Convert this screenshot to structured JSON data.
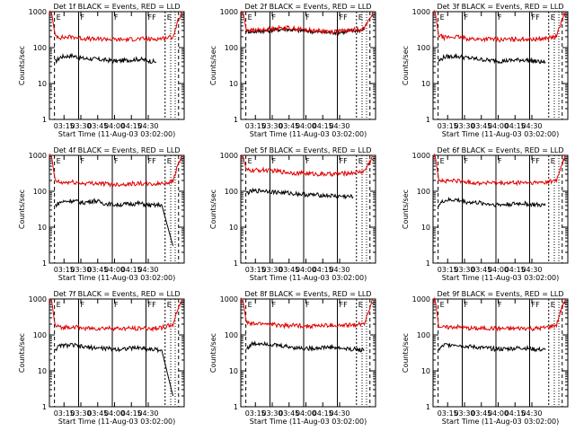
{
  "figure": {
    "ylabel": "Counts/sec",
    "xlabel": "Start Time (11-Aug-03 03:02:00)",
    "x_tick_labels": [
      "03:15",
      "03:30",
      "03:45",
      "04:00",
      "04:15",
      "04:30"
    ],
    "y_tick_labels": [
      "1",
      "10",
      "100",
      "1000"
    ],
    "markers": [
      {
        "label": "E",
        "t": 4.5
      },
      {
        "label": "F",
        "t": 26
      },
      {
        "label": "F",
        "t": 56
      },
      {
        "label": "FF",
        "t": 86
      },
      {
        "label": "E",
        "t": 103
      },
      {
        "label": "S",
        "t": 115
      }
    ],
    "colors": {
      "events": "#000000",
      "lld": "#e00000",
      "axes": "#000000"
    }
  },
  "chart_data": [
    {
      "type": "line",
      "title": "Det 1f BLACK = Events, RED = LLD",
      "xlabel": "Start Time (11-Aug-03 03:02:00)",
      "ylabel": "Counts/sec",
      "xlim": [
        0,
        120
      ],
      "ylim": [
        1,
        1000
      ],
      "yscale": "log",
      "series": [
        {
          "name": "Events",
          "color": "#000000",
          "x": [
            5,
            10,
            20,
            30,
            40,
            50,
            60,
            70,
            80,
            90,
            95
          ],
          "values": [
            40,
            55,
            60,
            50,
            48,
            45,
            42,
            45,
            48,
            42,
            40
          ]
        },
        {
          "name": "LLD",
          "color": "#e00000",
          "x": [
            0,
            2,
            5,
            10,
            20,
            30,
            40,
            50,
            60,
            70,
            80,
            90,
            100,
            110,
            114,
            118
          ],
          "values": [
            1000,
            900,
            220,
            190,
            200,
            180,
            170,
            175,
            165,
            170,
            175,
            170,
            180,
            200,
            500,
            1000
          ]
        }
      ]
    },
    {
      "type": "line",
      "title": "Det 2f BLACK = Events, RED = LLD",
      "xlabel": "Start Time (11-Aug-03 03:02:00)",
      "ylabel": "Counts/sec",
      "xlim": [
        0,
        120
      ],
      "ylim": [
        1,
        1000
      ],
      "yscale": "log",
      "series": [
        {
          "name": "Events",
          "color": "#000000",
          "x": [
            5,
            10,
            20,
            30,
            40,
            50,
            60,
            70,
            80,
            90,
            100,
            110
          ],
          "values": [
            290,
            280,
            290,
            310,
            330,
            300,
            290,
            270,
            260,
            270,
            290,
            320
          ]
        },
        {
          "name": "LLD",
          "color": "#e00000",
          "x": [
            0,
            2,
            5,
            10,
            20,
            30,
            40,
            50,
            60,
            70,
            80,
            90,
            100,
            110,
            114,
            118
          ],
          "values": [
            1000,
            900,
            320,
            300,
            310,
            340,
            360,
            330,
            310,
            290,
            280,
            290,
            310,
            340,
            600,
            1000
          ]
        }
      ]
    },
    {
      "type": "line",
      "title": "Det 3f BLACK = Events, RED = LLD",
      "xlabel": "Start Time (11-Aug-03 03:02:00)",
      "ylabel": "Counts/sec",
      "xlim": [
        0,
        120
      ],
      "ylim": [
        1,
        1000
      ],
      "yscale": "log",
      "series": [
        {
          "name": "Events",
          "color": "#000000",
          "x": [
            5,
            10,
            20,
            30,
            40,
            50,
            60,
            70,
            80,
            90,
            95,
            100
          ],
          "values": [
            42,
            55,
            58,
            52,
            48,
            44,
            42,
            44,
            46,
            42,
            40,
            40
          ]
        },
        {
          "name": "LLD",
          "color": "#e00000",
          "x": [
            0,
            2,
            5,
            10,
            20,
            30,
            40,
            50,
            60,
            70,
            80,
            90,
            100,
            110,
            114,
            118
          ],
          "values": [
            1000,
            900,
            220,
            190,
            200,
            180,
            170,
            175,
            165,
            170,
            175,
            170,
            180,
            200,
            500,
            1000
          ]
        }
      ]
    },
    {
      "type": "line",
      "title": "Det 4f BLACK = Events, RED = LLD",
      "xlabel": "Start Time (11-Aug-03 03:02:00)",
      "ylabel": "Counts/sec",
      "xlim": [
        0,
        120
      ],
      "ylim": [
        1,
        1000
      ],
      "yscale": "log",
      "series": [
        {
          "name": "Events",
          "color": "#000000",
          "x": [
            5,
            10,
            20,
            30,
            40,
            50,
            60,
            70,
            80,
            90,
            100,
            110
          ],
          "values": [
            40,
            50,
            55,
            48,
            55,
            45,
            42,
            44,
            46,
            40,
            42,
            3
          ]
        },
        {
          "name": "LLD",
          "color": "#e00000",
          "x": [
            0,
            2,
            5,
            10,
            20,
            30,
            40,
            50,
            60,
            70,
            80,
            90,
            100,
            110,
            114,
            118
          ],
          "values": [
            1000,
            900,
            200,
            170,
            180,
            165,
            170,
            160,
            155,
            160,
            165,
            155,
            165,
            190,
            500,
            1000
          ]
        }
      ]
    },
    {
      "type": "line",
      "title": "Det 5f BLACK = Events, RED = LLD",
      "xlabel": "Start Time (11-Aug-03 03:02:00)",
      "ylabel": "Counts/sec",
      "xlim": [
        0,
        120
      ],
      "ylim": [
        1,
        1000
      ],
      "yscale": "log",
      "series": [
        {
          "name": "Events",
          "color": "#000000",
          "x": [
            5,
            10,
            20,
            30,
            40,
            50,
            60,
            70,
            80,
            90,
            100
          ],
          "values": [
            90,
            100,
            105,
            95,
            90,
            85,
            80,
            78,
            75,
            72,
            70
          ]
        },
        {
          "name": "LLD",
          "color": "#e00000",
          "x": [
            0,
            2,
            5,
            10,
            20,
            30,
            40,
            50,
            60,
            70,
            80,
            90,
            100,
            110,
            114,
            118
          ],
          "values": [
            1000,
            900,
            380,
            380,
            390,
            370,
            340,
            320,
            310,
            300,
            300,
            310,
            330,
            360,
            600,
            1000
          ]
        }
      ]
    },
    {
      "type": "line",
      "title": "Det 6f BLACK = Events, RED = LLD",
      "xlabel": "Start Time (11-Aug-03 03:02:00)",
      "ylabel": "Counts/sec",
      "xlim": [
        0,
        120
      ],
      "ylim": [
        1,
        1000
      ],
      "yscale": "log",
      "series": [
        {
          "name": "Events",
          "color": "#000000",
          "x": [
            5,
            10,
            20,
            30,
            40,
            50,
            60,
            70,
            80,
            90,
            100
          ],
          "values": [
            42,
            55,
            58,
            50,
            48,
            44,
            42,
            44,
            46,
            42,
            40
          ]
        },
        {
          "name": "LLD",
          "color": "#e00000",
          "x": [
            0,
            2,
            5,
            10,
            20,
            30,
            40,
            50,
            60,
            70,
            80,
            90,
            100,
            110,
            114,
            118
          ],
          "values": [
            1000,
            900,
            220,
            190,
            200,
            180,
            170,
            175,
            165,
            170,
            175,
            170,
            180,
            200,
            500,
            1000
          ]
        }
      ]
    },
    {
      "type": "line",
      "title": "Det 7f BLACK = Events, RED = LLD",
      "xlabel": "Start Time (11-Aug-03 03:02:00)",
      "ylabel": "Counts/sec",
      "xlim": [
        0,
        120
      ],
      "ylim": [
        1,
        1000
      ],
      "yscale": "log",
      "series": [
        {
          "name": "Events",
          "color": "#000000",
          "x": [
            5,
            10,
            20,
            30,
            40,
            50,
            60,
            70,
            80,
            90,
            100,
            110
          ],
          "values": [
            40,
            50,
            52,
            46,
            44,
            42,
            40,
            42,
            44,
            40,
            38,
            2
          ]
        },
        {
          "name": "LLD",
          "color": "#e00000",
          "x": [
            0,
            2,
            5,
            10,
            20,
            30,
            40,
            50,
            60,
            70,
            80,
            90,
            100,
            110,
            114,
            118
          ],
          "values": [
            1000,
            900,
            180,
            160,
            170,
            155,
            150,
            155,
            150,
            150,
            155,
            150,
            160,
            190,
            500,
            1000
          ]
        }
      ]
    },
    {
      "type": "line",
      "title": "Det 8f BLACK = Events, RED = LLD",
      "xlabel": "Start Time (11-Aug-03 03:02:00)",
      "ylabel": "Counts/sec",
      "xlim": [
        0,
        120
      ],
      "ylim": [
        1,
        1000
      ],
      "yscale": "log",
      "series": [
        {
          "name": "Events",
          "color": "#000000",
          "x": [
            5,
            10,
            20,
            30,
            40,
            50,
            60,
            70,
            80,
            90,
            100,
            110
          ],
          "values": [
            42,
            55,
            60,
            52,
            48,
            44,
            42,
            44,
            46,
            42,
            40,
            38
          ]
        },
        {
          "name": "LLD",
          "color": "#e00000",
          "x": [
            0,
            2,
            5,
            10,
            20,
            30,
            40,
            50,
            60,
            70,
            80,
            90,
            100,
            110,
            114,
            118
          ],
          "values": [
            1000,
            900,
            220,
            200,
            210,
            190,
            180,
            185,
            175,
            180,
            185,
            180,
            190,
            210,
            500,
            1000
          ]
        }
      ]
    },
    {
      "type": "line",
      "title": "Det 9f BLACK = Events, RED = LLD",
      "xlabel": "Start Time (11-Aug-03 03:02:00)",
      "ylabel": "Counts/sec",
      "xlim": [
        0,
        120
      ],
      "ylim": [
        1,
        1000
      ],
      "yscale": "log",
      "series": [
        {
          "name": "Events",
          "color": "#000000",
          "x": [
            5,
            10,
            20,
            30,
            40,
            50,
            60,
            70,
            80,
            90,
            100
          ],
          "values": [
            40,
            52,
            55,
            48,
            45,
            42,
            40,
            42,
            44,
            40,
            38
          ]
        },
        {
          "name": "LLD",
          "color": "#e00000",
          "x": [
            0,
            2,
            5,
            10,
            20,
            30,
            40,
            50,
            60,
            70,
            80,
            90,
            100,
            110,
            114,
            118
          ],
          "values": [
            1000,
            900,
            180,
            160,
            170,
            155,
            150,
            155,
            150,
            150,
            155,
            150,
            160,
            190,
            500,
            1000
          ]
        }
      ]
    }
  ]
}
